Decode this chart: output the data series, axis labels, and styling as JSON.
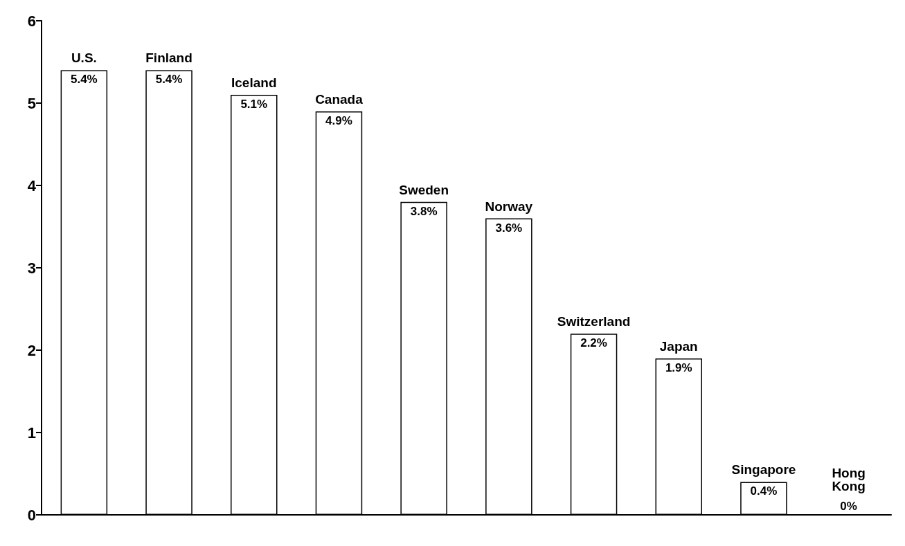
{
  "chart_data": {
    "type": "bar",
    "categories": [
      "U.S.",
      "Finland",
      "Iceland",
      "Canada",
      "Sweden",
      "Norway",
      "Switzerland",
      "Japan",
      "Singapore",
      "Hong\nKong"
    ],
    "values": [
      5.4,
      5.4,
      5.1,
      4.9,
      3.8,
      3.6,
      2.2,
      1.9,
      0.4,
      0
    ],
    "value_labels": [
      "5.4%",
      "5.4%",
      "5.1%",
      "4.9%",
      "3.8%",
      "3.6%",
      "2.2%",
      "1.9%",
      "0.4%",
      "0%"
    ],
    "color": "#ffffff",
    "ylim": [
      0,
      6
    ],
    "yticks": [
      0,
      1,
      2,
      3,
      4,
      5,
      6
    ],
    "grid": false
  }
}
